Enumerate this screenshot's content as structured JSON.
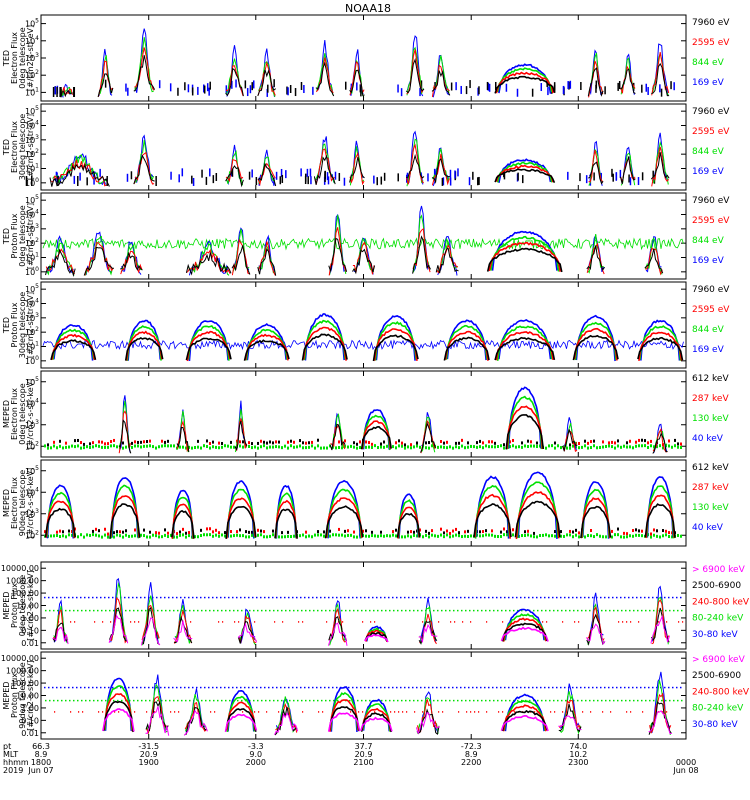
{
  "title": "NOAA18",
  "colors": {
    "blue": "#0000ff",
    "red": "#ff0000",
    "green": "#00e000",
    "black": "#000000",
    "magenta": "#ff00ff"
  },
  "chart_data": [
    {
      "type": "line",
      "ylabel": [
        "TED",
        "Electron Flux",
        "0deg telescope",
        "[#/cm2-s-str-eV]"
      ],
      "y_ticks": [
        "10^1",
        "10^2",
        "10^3",
        "10^4",
        "10^5"
      ],
      "legend": [
        {
          "label": "7960 eV",
          "color": "black"
        },
        {
          "label": "2595 eV",
          "color": "red"
        },
        {
          "label": "844 eV",
          "color": "green"
        },
        {
          "label": "169 eV",
          "color": "blue"
        }
      ],
      "events": [
        {
          "t": 0.04,
          "level": 0.15,
          "w": 0.008,
          "sparse": true
        },
        {
          "t": 0.1,
          "level": 0.58,
          "w": 0.01
        },
        {
          "t": 0.16,
          "level": 0.8,
          "w": 0.014
        },
        {
          "t": 0.3,
          "level": 0.6,
          "w": 0.012
        },
        {
          "t": 0.35,
          "level": 0.55,
          "w": 0.012
        },
        {
          "t": 0.44,
          "level": 0.65,
          "w": 0.012
        },
        {
          "t": 0.49,
          "level": 0.58,
          "w": 0.01
        },
        {
          "t": 0.58,
          "level": 0.78,
          "w": 0.012
        },
        {
          "t": 0.62,
          "level": 0.55,
          "w": 0.012
        },
        {
          "t": 0.75,
          "level": 0.42,
          "w": 0.04,
          "arc": true
        },
        {
          "t": 0.86,
          "level": 0.6,
          "w": 0.01
        },
        {
          "t": 0.91,
          "level": 0.58,
          "w": 0.01
        },
        {
          "t": 0.96,
          "level": 0.7,
          "w": 0.012
        }
      ]
    },
    {
      "type": "line",
      "ylabel": [
        "TED",
        "Electron Flux",
        "30deg telescope",
        "[#/cm2-s-str-eV]"
      ],
      "y_ticks": [
        "10^0",
        "10^1",
        "10^2",
        "10^3",
        "10^4",
        "10^5"
      ],
      "legend": [
        {
          "label": "7960 eV",
          "color": "black"
        },
        {
          "label": "2595 eV",
          "color": "red"
        },
        {
          "label": "844 eV",
          "color": "green"
        },
        {
          "label": "169 eV",
          "color": "blue"
        }
      ],
      "events": [
        {
          "t": 0.06,
          "level": 0.4,
          "w": 0.04,
          "sparse": true
        },
        {
          "t": 0.16,
          "level": 0.62,
          "w": 0.014
        },
        {
          "t": 0.3,
          "level": 0.5,
          "w": 0.012
        },
        {
          "t": 0.35,
          "level": 0.45,
          "w": 0.012
        },
        {
          "t": 0.44,
          "level": 0.62,
          "w": 0.014
        },
        {
          "t": 0.49,
          "level": 0.55,
          "w": 0.01
        },
        {
          "t": 0.58,
          "level": 0.7,
          "w": 0.012
        },
        {
          "t": 0.62,
          "level": 0.5,
          "w": 0.012
        },
        {
          "t": 0.75,
          "level": 0.35,
          "w": 0.04,
          "arc": true
        },
        {
          "t": 0.86,
          "level": 0.58,
          "w": 0.01
        },
        {
          "t": 0.91,
          "level": 0.55,
          "w": 0.01
        },
        {
          "t": 0.96,
          "level": 0.62,
          "w": 0.012
        }
      ]
    },
    {
      "type": "line",
      "ylabel": [
        "TED",
        "Proton Flux",
        "0deg telescope",
        "[#/cm2-s-str-eV]"
      ],
      "y_ticks": [
        "10^0",
        "10^1",
        "10^2",
        "10^3",
        "10^4",
        "10^5"
      ],
      "legend": [
        {
          "label": "7960 eV",
          "color": "black"
        },
        {
          "label": "2595 eV",
          "color": "red"
        },
        {
          "label": "844 eV",
          "color": "green"
        },
        {
          "label": "169 eV",
          "color": "blue"
        }
      ],
      "events": [
        {
          "t": 0.03,
          "level": 0.45,
          "w": 0.02
        },
        {
          "t": 0.09,
          "level": 0.55,
          "w": 0.02
        },
        {
          "t": 0.14,
          "level": 0.45,
          "w": 0.015
        },
        {
          "t": 0.26,
          "level": 0.4,
          "w": 0.03
        },
        {
          "t": 0.31,
          "level": 0.6,
          "w": 0.012
        },
        {
          "t": 0.35,
          "level": 0.5,
          "w": 0.012
        },
        {
          "t": 0.46,
          "level": 0.8,
          "w": 0.012
        },
        {
          "t": 0.5,
          "level": 0.5,
          "w": 0.015
        },
        {
          "t": 0.59,
          "level": 0.85,
          "w": 0.012
        },
        {
          "t": 0.63,
          "level": 0.5,
          "w": 0.015
        },
        {
          "t": 0.75,
          "level": 0.55,
          "w": 0.05,
          "arc": true
        },
        {
          "t": 0.86,
          "level": 0.55,
          "w": 0.012
        },
        {
          "t": 0.95,
          "level": 0.5,
          "w": 0.012
        }
      ]
    },
    {
      "type": "line",
      "ylabel": [
        "TED",
        "Proton Flux",
        "30deg telescope",
        "[#/cm2-s-str-eV]"
      ],
      "y_ticks": [
        "10^0",
        "10^1",
        "10^2",
        "10^3",
        "10^4",
        "10^5"
      ],
      "legend": [
        {
          "label": "7960 eV",
          "color": "black"
        },
        {
          "label": "2595 eV",
          "color": "red"
        },
        {
          "label": "844 eV",
          "color": "green"
        },
        {
          "label": "169 eV",
          "color": "blue"
        }
      ],
      "events": [
        {
          "t": 0.05,
          "level": 0.5,
          "w": 0.03,
          "arc": true
        },
        {
          "t": 0.16,
          "level": 0.55,
          "w": 0.025,
          "arc": true
        },
        {
          "t": 0.26,
          "level": 0.55,
          "w": 0.03,
          "arc": true
        },
        {
          "t": 0.35,
          "level": 0.5,
          "w": 0.03,
          "arc": true
        },
        {
          "t": 0.44,
          "level": 0.62,
          "w": 0.03,
          "arc": true
        },
        {
          "t": 0.55,
          "level": 0.6,
          "w": 0.03,
          "arc": true
        },
        {
          "t": 0.66,
          "level": 0.55,
          "w": 0.03,
          "arc": true
        },
        {
          "t": 0.75,
          "level": 0.55,
          "w": 0.04,
          "arc": true
        },
        {
          "t": 0.86,
          "level": 0.6,
          "w": 0.03,
          "arc": true
        },
        {
          "t": 0.96,
          "level": 0.55,
          "w": 0.03,
          "arc": true
        }
      ]
    },
    {
      "type": "line",
      "ylabel": [
        "MEPED",
        "Electron Flux",
        "0deg telescope",
        "[#/cm2-s-str-keV]"
      ],
      "y_ticks": [
        "10^2",
        "10^3",
        "10^4",
        "10^5"
      ],
      "legend": [
        {
          "label": "612 keV",
          "color": "black"
        },
        {
          "label": "287 keV",
          "color": "red"
        },
        {
          "label": "130 keV",
          "color": "green"
        },
        {
          "label": "40 keV",
          "color": "blue"
        }
      ],
      "events": [
        {
          "t": 0.13,
          "level": 0.75,
          "w": 0.008
        },
        {
          "t": 0.22,
          "level": 0.55,
          "w": 0.008
        },
        {
          "t": 0.31,
          "level": 0.6,
          "w": 0.008
        },
        {
          "t": 0.46,
          "level": 0.55,
          "w": 0.01
        },
        {
          "t": 0.52,
          "level": 0.55,
          "w": 0.02,
          "arc": true
        },
        {
          "t": 0.6,
          "level": 0.55,
          "w": 0.01
        },
        {
          "t": 0.75,
          "level": 0.8,
          "w": 0.025,
          "arc": true
        },
        {
          "t": 0.82,
          "level": 0.45,
          "w": 0.01
        },
        {
          "t": 0.96,
          "level": 0.4,
          "w": 0.01
        }
      ]
    },
    {
      "type": "line",
      "ylabel": [
        "MEPED",
        "Electron Flux",
        "90deg telescope",
        "[#/cm2-s-str-keV]"
      ],
      "y_ticks": [
        "10^2",
        "10^3",
        "10^4",
        "10^5"
      ],
      "legend": [
        {
          "label": "612 keV",
          "color": "black"
        },
        {
          "label": "287 keV",
          "color": "red"
        },
        {
          "label": "130 keV",
          "color": "green"
        },
        {
          "label": "40 keV",
          "color": "blue"
        }
      ],
      "events": [
        {
          "t": 0.03,
          "level": 0.7,
          "w": 0.02,
          "arc": true
        },
        {
          "t": 0.13,
          "level": 0.8,
          "w": 0.02,
          "arc": true
        },
        {
          "t": 0.22,
          "level": 0.65,
          "w": 0.015,
          "arc": true
        },
        {
          "t": 0.31,
          "level": 0.75,
          "w": 0.02,
          "arc": true
        },
        {
          "t": 0.38,
          "level": 0.7,
          "w": 0.015,
          "arc": true
        },
        {
          "t": 0.47,
          "level": 0.75,
          "w": 0.025,
          "arc": true
        },
        {
          "t": 0.57,
          "level": 0.6,
          "w": 0.015,
          "arc": true
        },
        {
          "t": 0.7,
          "level": 0.8,
          "w": 0.025,
          "arc": true
        },
        {
          "t": 0.77,
          "level": 0.85,
          "w": 0.03,
          "arc": true
        },
        {
          "t": 0.86,
          "level": 0.75,
          "w": 0.02,
          "arc": true
        },
        {
          "t": 0.96,
          "level": 0.8,
          "w": 0.02,
          "arc": true
        }
      ]
    },
    {
      "type": "line",
      "ylabel": [
        "MEPED",
        "Proton Flux",
        "0deg telescope",
        "[#/cm2-s-str-keV]"
      ],
      "y_ticks": [
        "0.01",
        "0.10",
        "1.00",
        "10.00",
        "100.00",
        "1000.00",
        "10000.00"
      ],
      "legend": [
        {
          "label": "> 6900 keV",
          "color": "magenta"
        },
        {
          "label": "2500-6900",
          "color": "black"
        },
        {
          "label": "240-800 keV",
          "color": "red"
        },
        {
          "label": "80-240 keV",
          "color": "green"
        },
        {
          "label": "30-80 keV",
          "color": "blue"
        }
      ],
      "events": [
        {
          "t": 0.03,
          "level": 0.55,
          "w": 0.01
        },
        {
          "t": 0.12,
          "level": 0.85,
          "w": 0.012
        },
        {
          "t": 0.17,
          "level": 0.75,
          "w": 0.012
        },
        {
          "t": 0.22,
          "level": 0.55,
          "w": 0.012
        },
        {
          "t": 0.32,
          "level": 0.5,
          "w": 0.012
        },
        {
          "t": 0.46,
          "level": 0.55,
          "w": 0.012
        },
        {
          "t": 0.52,
          "level": 0.25,
          "w": 0.015,
          "arc": true
        },
        {
          "t": 0.6,
          "level": 0.55,
          "w": 0.012
        },
        {
          "t": 0.75,
          "level": 0.45,
          "w": 0.03,
          "arc": true
        },
        {
          "t": 0.86,
          "level": 0.6,
          "w": 0.012
        },
        {
          "t": 0.96,
          "level": 0.75,
          "w": 0.012
        }
      ]
    },
    {
      "type": "line",
      "ylabel": [
        "MEPED",
        "Proton Flux",
        "90deg telescope",
        "[#/cm2-s-str-keV]"
      ],
      "y_ticks": [
        "0.01",
        "0.10",
        "1.00",
        "10.00",
        "100.00",
        "1000.00",
        "10000.00"
      ],
      "legend": [
        {
          "label": "> 6900 keV",
          "color": "magenta"
        },
        {
          "label": "2500-6900",
          "color": "black"
        },
        {
          "label": "240-800 keV",
          "color": "red"
        },
        {
          "label": "80-240 keV",
          "color": "green"
        },
        {
          "label": "30-80 keV",
          "color": "blue"
        }
      ],
      "events": [
        {
          "t": 0.12,
          "level": 0.7,
          "w": 0.02,
          "arc": true
        },
        {
          "t": 0.18,
          "level": 0.7,
          "w": 0.015
        },
        {
          "t": 0.24,
          "level": 0.55,
          "w": 0.015
        },
        {
          "t": 0.31,
          "level": 0.55,
          "w": 0.02,
          "arc": true
        },
        {
          "t": 0.38,
          "level": 0.5,
          "w": 0.015
        },
        {
          "t": 0.47,
          "level": 0.6,
          "w": 0.02,
          "arc": true
        },
        {
          "t": 0.52,
          "level": 0.45,
          "w": 0.02,
          "arc": true
        },
        {
          "t": 0.6,
          "level": 0.55,
          "w": 0.015
        },
        {
          "t": 0.75,
          "level": 0.5,
          "w": 0.03,
          "arc": true
        },
        {
          "t": 0.82,
          "level": 0.6,
          "w": 0.015
        },
        {
          "t": 0.96,
          "level": 0.75,
          "w": 0.015
        }
      ]
    }
  ],
  "x_axis": {
    "row_labels": [
      "pt",
      "MLT",
      "hhmm",
      "2019"
    ],
    "ticks": [
      {
        "t": 0.0,
        "pt": "66.3",
        "mlt": "8.9",
        "hhmm": "1800",
        "extra": "Jun 07"
      },
      {
        "t": 0.167,
        "pt": "-31.5",
        "mlt": "20.9",
        "hhmm": "1900",
        "extra": ""
      },
      {
        "t": 0.333,
        "pt": "-3.3",
        "mlt": "9.0",
        "hhmm": "2000",
        "extra": ""
      },
      {
        "t": 0.5,
        "pt": "37.7",
        "mlt": "20.9",
        "hhmm": "2100",
        "extra": ""
      },
      {
        "t": 0.667,
        "pt": "-72.3",
        "mlt": "8.9",
        "hhmm": "2200",
        "extra": ""
      },
      {
        "t": 0.833,
        "pt": "74.0",
        "mlt": "10.2",
        "hhmm": "2300",
        "extra": ""
      },
      {
        "t": 1.0,
        "pt": "",
        "mlt": "",
        "hhmm": "0000",
        "extra": "Jun 08"
      }
    ]
  }
}
